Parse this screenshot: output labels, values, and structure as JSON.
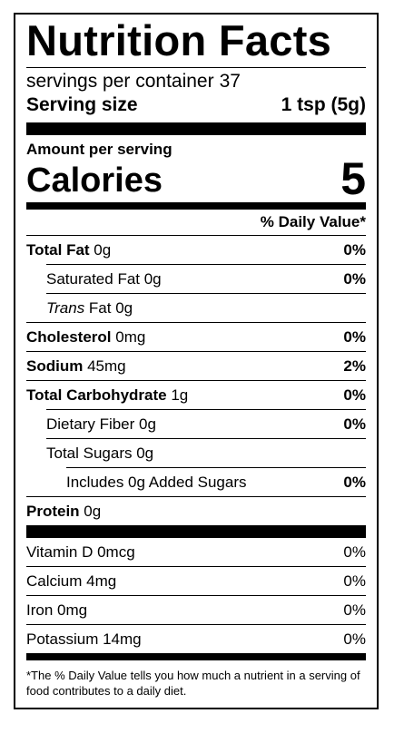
{
  "title": "Nutrition Facts",
  "servings": {
    "label": "servings per container",
    "value": "37"
  },
  "serving_size": {
    "label": "Serving size",
    "value": "1 tsp (5g)"
  },
  "amount_per_serving": "Amount per serving",
  "calories": {
    "label": "Calories",
    "value": "5"
  },
  "dv_header": "% Daily Value*",
  "nutrients": {
    "total_fat": {
      "name": "Total Fat",
      "amount": " 0g",
      "pct": "0%"
    },
    "saturated_fat": {
      "name": "Saturated Fat 0g",
      "pct": "0%"
    },
    "trans_fat": {
      "italic": "Trans",
      "rest": " Fat 0g"
    },
    "cholesterol": {
      "name": "Cholesterol",
      "amount": " 0mg",
      "pct": "0%"
    },
    "sodium": {
      "name": "Sodium",
      "amount": " 45mg",
      "pct": "2%"
    },
    "total_carb": {
      "name": "Total Carbohydrate",
      "amount": " 1g",
      "pct": "0%"
    },
    "fiber": {
      "name": "Dietary Fiber 0g",
      "pct": "0%"
    },
    "total_sugars": {
      "name": "Total Sugars 0g"
    },
    "added_sugars": {
      "name": "Includes 0g Added Sugars",
      "pct": "0%"
    },
    "protein": {
      "name": "Protein",
      "amount": " 0g"
    }
  },
  "vitamins": [
    {
      "name": "Vitamin D 0mcg",
      "pct": "0%"
    },
    {
      "name": "Calcium 4mg",
      "pct": "0%"
    },
    {
      "name": "Iron 0mg",
      "pct": "0%"
    },
    {
      "name": "Potassium 14mg",
      "pct": "0%"
    }
  ],
  "footnote": "*The % Daily Value tells you how much a nutrient in a serving of food contributes to a daily diet."
}
